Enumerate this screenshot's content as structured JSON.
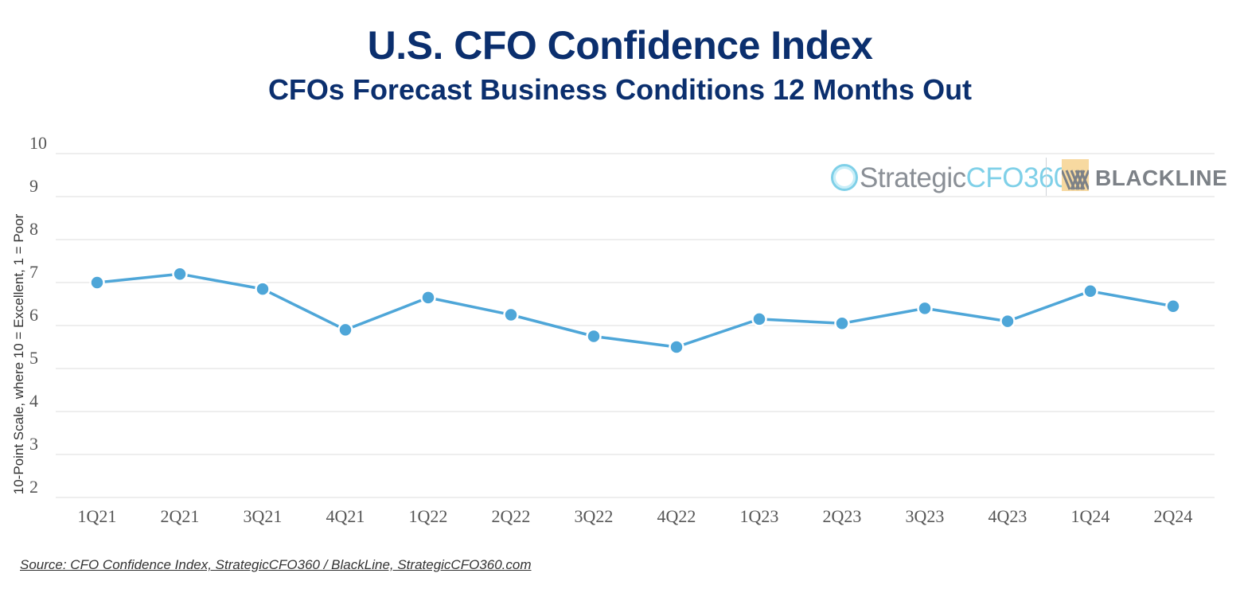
{
  "chart_data": {
    "type": "line",
    "title": "U.S. CFO Confidence Index",
    "subtitle": "CFOs Forecast Business Conditions 12 Months Out",
    "xlabel": "",
    "ylabel": "10-Point Scale, where 10 = Excellent, 1 = Poor",
    "ylim": [
      2,
      10
    ],
    "yticks": [
      2,
      3,
      4,
      5,
      6,
      7,
      8,
      9,
      10
    ],
    "grid": true,
    "categories": [
      "1Q21",
      "2Q21",
      "3Q21",
      "4Q21",
      "1Q22",
      "2Q22",
      "3Q22",
      "4Q22",
      "1Q23",
      "2Q23",
      "3Q23",
      "4Q23",
      "1Q24",
      "2Q24"
    ],
    "series": [
      {
        "name": "CFO Confidence Index",
        "color": "#4ea6d8",
        "values": [
          7.0,
          7.2,
          6.85,
          5.9,
          6.65,
          6.25,
          5.75,
          5.5,
          6.15,
          6.05,
          6.4,
          6.1,
          6.8,
          6.45
        ]
      }
    ]
  },
  "logos": {
    "strategic_prefix": "Strategic",
    "strategic_accent": "CFO360",
    "blackline": "BLACKLINE"
  },
  "source": "Source: CFO Confidence Index, StrategicCFO360 / BlackLine, StrategicCFO360.com",
  "colors": {
    "title": "#0b2f6e",
    "line": "#4ea6d8",
    "grid": "#e3e3e3"
  }
}
